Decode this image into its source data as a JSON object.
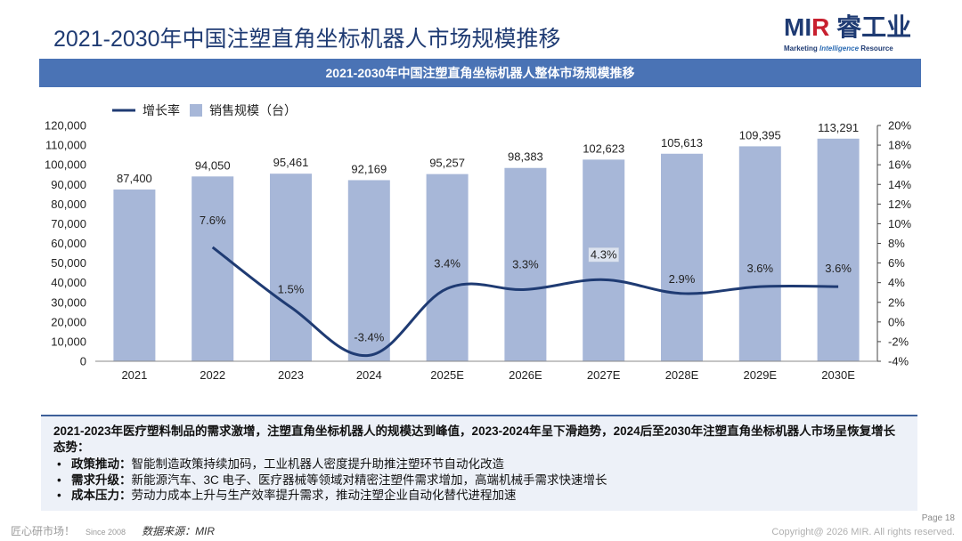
{
  "header": {
    "title": "2021-2030年中国注塑直角坐标机器人市场规模推移",
    "logo_main_1": "MI",
    "logo_main_2": "R",
    "logo_main_3": " 睿工业",
    "logo_sub_1": "Marketing ",
    "logo_sub_2": "Intelligence",
    "logo_sub_3": " Resource"
  },
  "banner": {
    "text": "2021-2030年中国注塑直角坐标机器人整体市场规模推移"
  },
  "colors": {
    "bar": "#A7B7D8",
    "line": "#1F3B73",
    "banner": "#4A73B5",
    "title": "#1F3B73"
  },
  "chart_data": {
    "type": "bar+line",
    "categories": [
      "2021",
      "2022",
      "2023",
      "2024",
      "2025E",
      "2026E",
      "2027E",
      "2028E",
      "2029E",
      "2030E"
    ],
    "series": [
      {
        "name": "销售规模（台）",
        "type": "bar",
        "axis": "left",
        "values": [
          87400,
          94050,
          95461,
          92169,
          95257,
          98383,
          102623,
          105613,
          109395,
          113291
        ],
        "labels": [
          "87,400",
          "94,050",
          "95,461",
          "92,169",
          "95,257",
          "98,383",
          "102,623",
          "105,613",
          "109,395",
          "113,291"
        ]
      },
      {
        "name": "增长率",
        "type": "line",
        "axis": "right",
        "values": [
          null,
          7.6,
          1.5,
          -3.4,
          3.4,
          3.3,
          4.3,
          2.9,
          3.6,
          3.6
        ],
        "labels": [
          "",
          "7.6%",
          "1.5%",
          "-3.4%",
          "3.4%",
          "3.3%",
          "4.3%",
          "2.9%",
          "3.6%",
          "3.6%"
        ]
      }
    ],
    "y_left": {
      "min": 0,
      "max": 120000,
      "ticks": [
        "0",
        "10,000",
        "20,000",
        "30,000",
        "40,000",
        "50,000",
        "60,000",
        "70,000",
        "80,000",
        "90,000",
        "100,000",
        "110,000",
        "120,000"
      ]
    },
    "y_right": {
      "min": -4,
      "max": 20,
      "ticks": [
        "-4%",
        "-2%",
        "0%",
        "2%",
        "4%",
        "6%",
        "8%",
        "10%",
        "12%",
        "14%",
        "16%",
        "18%",
        "20%"
      ]
    },
    "legend": {
      "position": "top-left"
    }
  },
  "summary": {
    "head": "2021-2023年医疗塑料制品的需求激增，注塑直角坐标机器人的规模达到峰值，2023-2024年呈下滑趋势，2024后至2030年注塑直角坐标机器人市场呈恢复增长态势：",
    "items": [
      {
        "label": "政策推动：",
        "text": "智能制造政策持续加码，工业机器人密度提升助推注塑环节自动化改造"
      },
      {
        "label": "需求升级：",
        "text": "新能源汽车、3C 电子、医疗器械等领域对精密注塑件需求增加，高端机械手需求快速增长"
      },
      {
        "label": "成本压力：",
        "text": "劳动力成本上升与生产效率提升需求，推动注塑企业自动化替代进程加速"
      }
    ]
  },
  "footer": {
    "slogan": "匠心研市场！",
    "since": "Since 2008",
    "source": "数据来源：MIR",
    "page": "Page 18",
    "copyright": "Copyright@ 2026 MIR. All rights reserved."
  }
}
